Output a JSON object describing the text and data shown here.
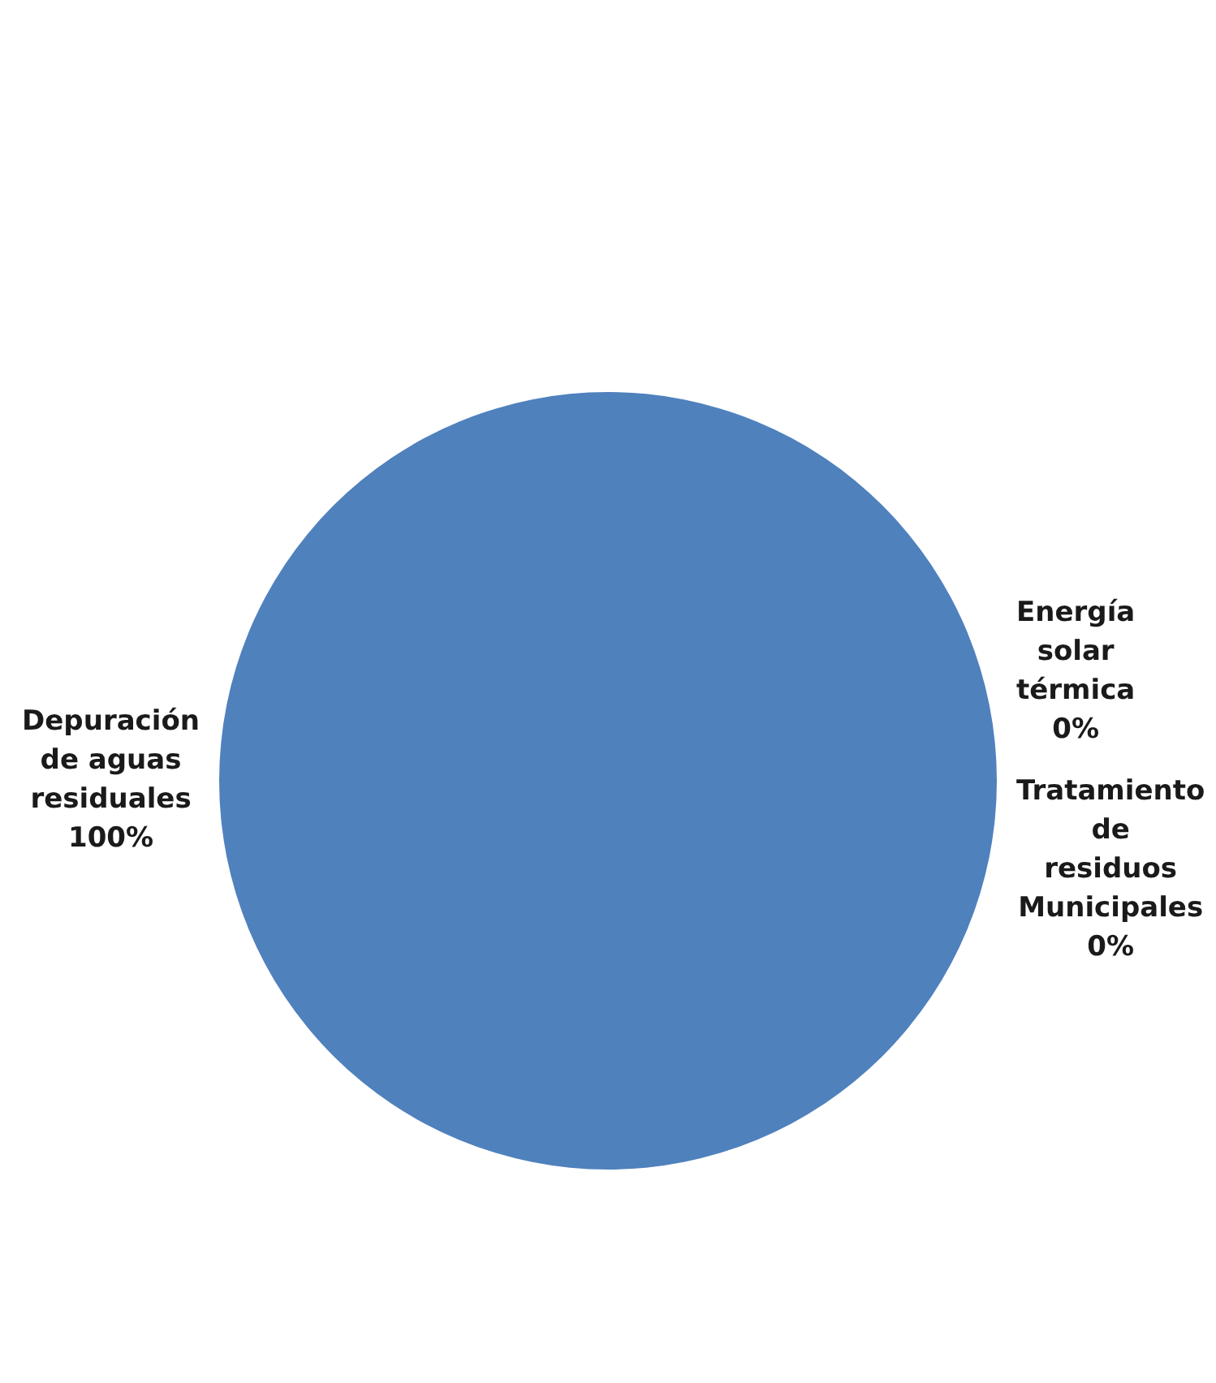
{
  "chart_data": {
    "type": "pie",
    "categories": [
      "Energía solar térmica",
      "Tratamiento de residuos Municipales",
      "Depuración de aguas residuales"
    ],
    "values": [
      0,
      0,
      100
    ],
    "colors": [
      "#4f81bd",
      "#c0504d",
      "#4f81bd"
    ],
    "value_labels": [
      "0%",
      "0%",
      "100%"
    ],
    "legend": false
  }
}
